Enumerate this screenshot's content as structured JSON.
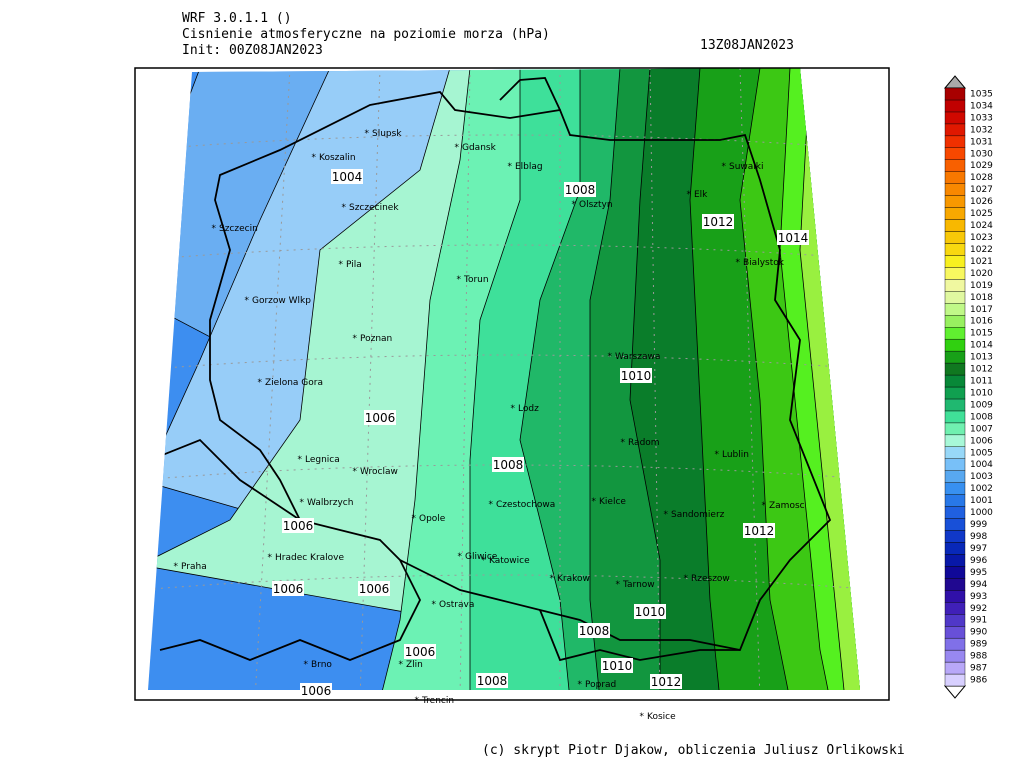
{
  "header": {
    "model": "WRF 3.0.1.1 ()",
    "title": "Cisnienie atmosferyczne na poziomie morza (hPa)",
    "init": "Init: 00Z08JAN2023",
    "valid": "13Z08JAN2023"
  },
  "footer": "(c) skrypt Piotr Djakow, obliczenia Juliusz Orlikowski",
  "cities": [
    "Slupsk",
    "Koszalin",
    "Gdansk",
    "Elblag",
    "Suwalki",
    "Olsztyn",
    "Elk",
    "Szczecin",
    "Szczecinek",
    "Bialystok",
    "Pila",
    "Torun",
    "Gorzow Wlkp",
    "Poznan",
    "Warszawa",
    "Zielona Gora",
    "Lodz",
    "Radom",
    "Lublin",
    "Legnica",
    "Wroclaw",
    "Czestochowa",
    "Kielce",
    "Walbrzych",
    "Zamosc",
    "Opole",
    "Sandomierz",
    "Hradec Kralove",
    "Gliwice",
    "Katowice",
    "Praha",
    "Krakow",
    "Tarnow",
    "Rzeszow",
    "Ostrava",
    "Brno",
    "Zlin",
    "Poprad",
    "Kosice",
    "Trencin"
  ],
  "contour_labels": [
    1004,
    1008,
    1012,
    1014,
    1010,
    1006,
    1008,
    1006,
    1012,
    1006,
    1006,
    1010,
    1008,
    1006,
    1010,
    1008,
    1012,
    1006
  ],
  "colorbar": {
    "levels": [
      986,
      987,
      988,
      989,
      990,
      991,
      992,
      993,
      994,
      995,
      996,
      997,
      998,
      999,
      1000,
      1001,
      1002,
      1003,
      1004,
      1005,
      1006,
      1007,
      1008,
      1009,
      1010,
      1011,
      1012,
      1013,
      1014,
      1015,
      1016,
      1017,
      1018,
      1019,
      1020,
      1021,
      1022,
      1023,
      1024,
      1025,
      1026,
      1027,
      1028,
      1029,
      1030,
      1031,
      1032,
      1033,
      1034,
      1035
    ],
    "colors": [
      "#d8d0ff",
      "#b8a8f8",
      "#9888f0",
      "#8070e8",
      "#6850d8",
      "#5038c8",
      "#4020b8",
      "#3010a8",
      "#200890",
      "#100898",
      "#0818a8",
      "#0828b8",
      "#1038c8",
      "#1850d8",
      "#2060e0",
      "#2878e8",
      "#3890f0",
      "#58a8f0",
      "#78c0f8",
      "#98d8f8",
      "#a8f8d8",
      "#70f0b0",
      "#40e098",
      "#20b870",
      "#10a050",
      "#088838",
      "#107820",
      "#18a018",
      "#30d010",
      "#60f030",
      "#98f060",
      "#c0f888",
      "#e0f8a0",
      "#f0f8a0",
      "#f8f860",
      "#f8f020",
      "#f8d810",
      "#f8c808",
      "#f8b800",
      "#f8a800",
      "#f89800",
      "#f88800",
      "#f87800",
      "#f86000",
      "#f84800",
      "#f03000",
      "#e01800",
      "#d00800",
      "#c00000",
      "#a80000"
    ]
  }
}
